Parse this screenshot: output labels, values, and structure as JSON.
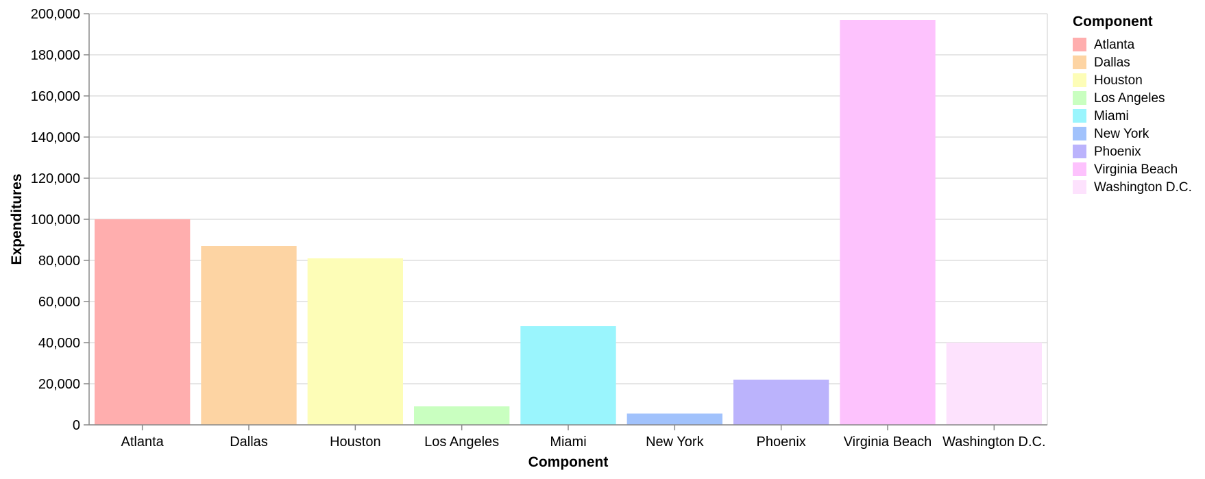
{
  "chart_data": {
    "type": "bar",
    "xlabel": "Component",
    "ylabel": "Expenditures",
    "ylim": [
      0,
      200000
    ],
    "y_ticks": [
      0,
      20000,
      40000,
      60000,
      80000,
      100000,
      120000,
      140000,
      160000,
      180000,
      200000
    ],
    "y_tick_labels": [
      "0",
      "20,000",
      "40,000",
      "60,000",
      "80,000",
      "100,000",
      "120,000",
      "140,000",
      "160,000",
      "180,000",
      "200,000"
    ],
    "grid": true,
    "categories": [
      "Atlanta",
      "Dallas",
      "Houston",
      "Los Angeles",
      "Miami",
      "New York",
      "Phoenix",
      "Virginia Beach",
      "Washington D.C."
    ],
    "values": [
      100000,
      87000,
      81000,
      9000,
      48000,
      5500,
      22000,
      197000,
      40000
    ],
    "colors": [
      "#ffaeae",
      "#fdd4a3",
      "#fdfdb7",
      "#c9ffc0",
      "#9af5fd",
      "#a1c2fc",
      "#bbb3fc",
      "#fdc2fd",
      "#fde2fd"
    ],
    "legend": {
      "title": "Component",
      "placement": "right",
      "entries": [
        "Atlanta",
        "Dallas",
        "Houston",
        "Los Angeles",
        "Miami",
        "New York",
        "Phoenix",
        "Virginia Beach",
        "Washington D.C."
      ]
    }
  }
}
